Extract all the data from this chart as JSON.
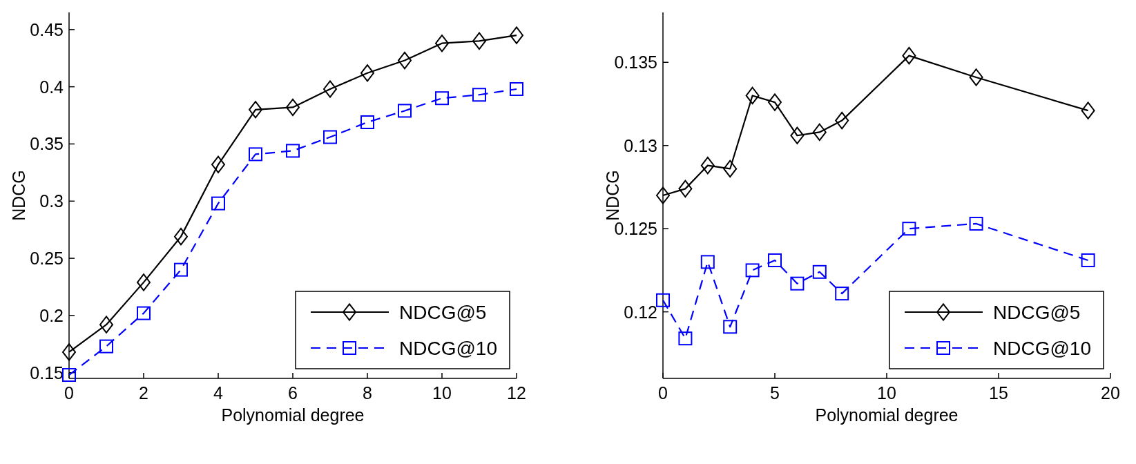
{
  "chart_data": [
    {
      "type": "line",
      "xlabel": "Polynomial degree",
      "ylabel": "NDCG",
      "xlim": [
        0,
        12
      ],
      "xticks": [
        0,
        2,
        4,
        6,
        8,
        10,
        12
      ],
      "ylim": [
        0.145,
        0.465
      ],
      "yticks": [
        0.15,
        0.2,
        0.25,
        0.3,
        0.35,
        0.4,
        0.45
      ],
      "legend": "bottom right",
      "grid": false,
      "x": [
        0,
        1,
        2,
        3,
        4,
        5,
        6,
        7,
        8,
        9,
        10,
        11,
        12
      ],
      "series": [
        {
          "name": "NDCG@5",
          "color": "#000000",
          "marker": "diamond",
          "line_style": "solid",
          "values": [
            0.168,
            0.192,
            0.229,
            0.269,
            0.332,
            0.38,
            0.382,
            0.398,
            0.412,
            0.423,
            0.438,
            0.44,
            0.445
          ]
        },
        {
          "name": "NDCG@10",
          "color": "#0000ff",
          "marker": "square",
          "line_style": "dashed",
          "values": [
            0.148,
            0.173,
            0.202,
            0.24,
            0.298,
            0.341,
            0.344,
            0.356,
            0.369,
            0.379,
            0.39,
            0.393,
            0.398
          ]
        }
      ]
    },
    {
      "type": "line",
      "xlabel": "Polynomial degree",
      "ylabel": "NDCG",
      "xlim": [
        0,
        20
      ],
      "xticks": [
        0,
        5,
        10,
        15,
        20
      ],
      "ylim": [
        0.116,
        0.138
      ],
      "yticks": [
        0.12,
        0.125,
        0.13,
        0.135
      ],
      "legend": "bottom right",
      "grid": false,
      "x": [
        0,
        1,
        2,
        3,
        4,
        5,
        6,
        7,
        8,
        11,
        14,
        19
      ],
      "series": [
        {
          "name": "NDCG@5",
          "color": "#000000",
          "marker": "diamond",
          "line_style": "solid",
          "values": [
            0.127,
            0.1274,
            0.1288,
            0.1286,
            0.133,
            0.1326,
            0.1306,
            0.1308,
            0.1315,
            0.1354,
            0.1341,
            0.1321
          ]
        },
        {
          "name": "NDCG@10",
          "color": "#0000ff",
          "marker": "square",
          "line_style": "dashed",
          "values": [
            0.1207,
            0.1184,
            0.123,
            0.1191,
            0.1225,
            0.1231,
            0.1217,
            0.1224,
            0.1211,
            0.125,
            0.1253,
            0.1231
          ]
        }
      ]
    }
  ]
}
